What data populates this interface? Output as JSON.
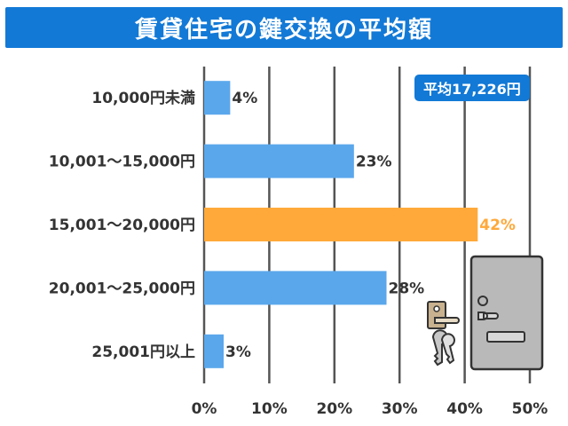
{
  "title": "賃貸住宅の鍵交換の平均額",
  "average_label": "平均17,226円",
  "colors": {
    "bar": "#5aa7ec",
    "highlight": "#ffa93a",
    "title_bg": "#1279d6",
    "grid": "#555555"
  },
  "icons": [
    "door-icon",
    "door-handle-icon",
    "keys-icon"
  ],
  "chart_data": {
    "type": "bar",
    "orientation": "horizontal",
    "title": "賃貸住宅の鍵交換の平均額",
    "categories": [
      "10,000円未満",
      "10,001〜15,000円",
      "15,001〜20,000円",
      "20,001〜25,000円",
      "25,001円以上"
    ],
    "values": [
      4,
      23,
      42,
      28,
      3
    ],
    "value_labels": [
      "4%",
      "23%",
      "42%",
      "28%",
      "3%"
    ],
    "highlight_index": 2,
    "xlim": [
      0,
      50
    ],
    "xticks": [
      0,
      10,
      20,
      30,
      40,
      50
    ],
    "xtick_labels": [
      "0%",
      "10%",
      "20%",
      "30%",
      "40%",
      "50%"
    ],
    "grid": true,
    "xlabel": "",
    "ylabel": ""
  }
}
